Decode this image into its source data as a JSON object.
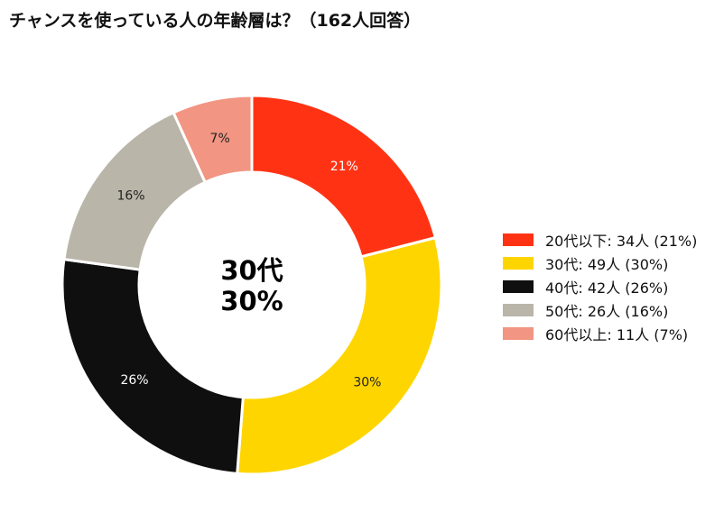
{
  "title": "チャンスを使っている人の年齢層は？（162人回答）",
  "center": {
    "line1": "30代",
    "line2": "30%"
  },
  "chart_data": {
    "type": "pie",
    "subtype": "donut",
    "title": "チャンスを使っている人の年齢層は？（162人回答）",
    "total": 162,
    "slices": [
      {
        "category": "20代以下",
        "count": 34,
        "percent": 21,
        "pct_label": "21%",
        "legend": "20代以下:  34人 (21%)",
        "color": "#FF3314",
        "label_color": "#ffffff"
      },
      {
        "category": "30代",
        "count": 49,
        "percent": 30,
        "pct_label": "30%",
        "legend": "30代:  49人 (30%)",
        "color": "#FFD500",
        "label_color": "#222222"
      },
      {
        "category": "40代",
        "count": 42,
        "percent": 26,
        "pct_label": "26%",
        "legend": "40代:  42人 (26%)",
        "color": "#0F0F0F",
        "label_color": "#ffffff"
      },
      {
        "category": "50代",
        "count": 26,
        "percent": 16,
        "pct_label": "16%",
        "legend": "50代:  26人 (16%)",
        "color": "#BAB5A9",
        "label_color": "#222222"
      },
      {
        "category": "60代以上",
        "count": 11,
        "percent": 7,
        "pct_label": "7%",
        "legend": "60代以上:  11人 (7%)",
        "color": "#F29582",
        "label_color": "#222222"
      }
    ],
    "legend_position": "right"
  }
}
